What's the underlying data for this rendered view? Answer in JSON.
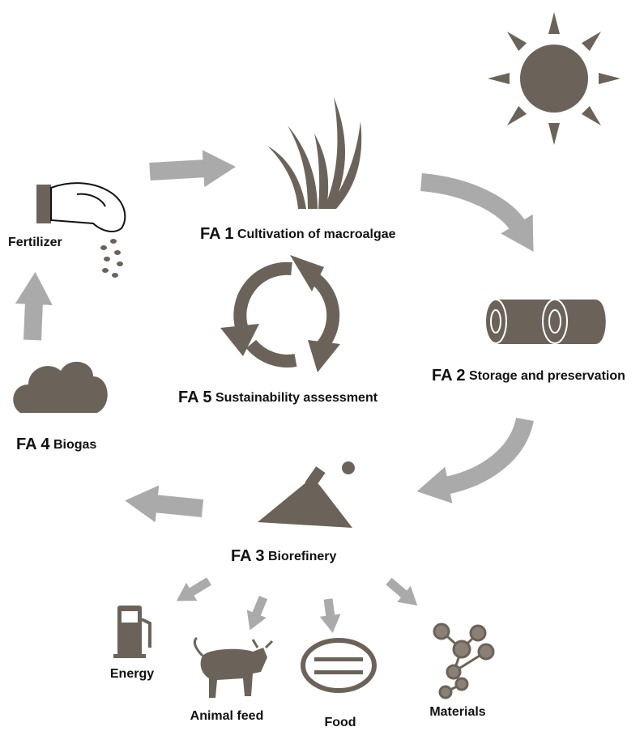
{
  "stages": [
    {
      "id": "FA 1",
      "label": "Cultivation of macroalgae"
    },
    {
      "id": "FA 2",
      "label": "Storage and preservation"
    },
    {
      "id": "FA 3",
      "label": "Biorefinery"
    },
    {
      "id": "FA 4",
      "label": "Biogas"
    },
    {
      "id": "FA 5",
      "label": "Sustainability assessment"
    }
  ],
  "fertilizer": "Fertilizer",
  "products": [
    "Energy",
    "Animal feed",
    "Food",
    "Materials"
  ]
}
